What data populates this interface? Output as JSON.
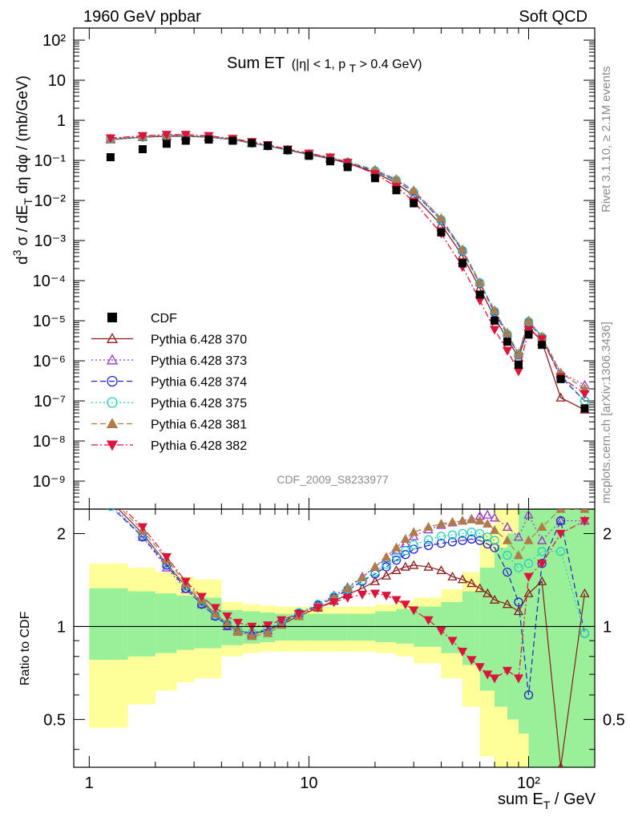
{
  "header": {
    "left": "1960 GeV ppbar",
    "right": "Soft QCD",
    "title_main": "Sum ET",
    "title_cut": "(|η| < 1, p",
    "title_cut_sub": "T",
    "title_cut_end": " > 0.4 GeV)"
  },
  "side_text": {
    "rivet": "Rivet 3.1.10, ≥ 2.1M events",
    "mcplots": "mcplots.cern.ch [arXiv:1306.3436]"
  },
  "watermark": "CDF_2009_S8233977",
  "axes": {
    "ylabel_top": "d³σ / dE_T dη dφ / (mb/GeV)",
    "ylabel_bottom": "Ratio to CDF",
    "xlabel": "sum E_T / GeV",
    "x_ticks": [
      "1",
      "10",
      "10²"
    ],
    "y_ticks_top": [
      "10²",
      "10",
      "1",
      "10⁻¹",
      "10⁻²",
      "10⁻³",
      "10⁻⁴",
      "10⁻⁵",
      "10⁻⁶",
      "10⁻⁷",
      "10⁻⁸",
      "10⁻⁹"
    ],
    "y_ticks_bottom": [
      "2",
      "1",
      "0.5"
    ]
  },
  "legend": [
    {
      "label": "CDF",
      "color": "#000000",
      "marker": "filled-square",
      "line": "none"
    },
    {
      "label": "Pythia 6.428 370",
      "color": "#8b1a1a",
      "marker": "open-triangle-up",
      "line": "solid"
    },
    {
      "label": "Pythia 6.428 373",
      "color": "#9932cc",
      "marker": "open-triangle-up",
      "line": "dotted"
    },
    {
      "label": "Pythia 6.428 374",
      "color": "#2020d0",
      "marker": "open-circle",
      "line": "dashed"
    },
    {
      "label": "Pythia 6.428 375",
      "color": "#20d0c0",
      "marker": "open-circle",
      "line": "dotted"
    },
    {
      "label": "Pythia 6.428 381",
      "color": "#b07a4a",
      "marker": "filled-triangle-up",
      "line": "dashed"
    },
    {
      "label": "Pythia 6.428 382",
      "color": "#dc143c",
      "marker": "filled-triangle-down",
      "line": "dashdot"
    }
  ],
  "chart_data": {
    "type": "scatter",
    "x_scale": "log",
    "xlim": [
      0.85,
      200
    ],
    "top_panel": {
      "y_scale": "log",
      "ylim": [
        2e-10,
        200
      ],
      "cdf": {
        "x": [
          1.25,
          1.75,
          2.25,
          2.75,
          3.5,
          4.5,
          5.5,
          6.5,
          8,
          10,
          12.5,
          15,
          20,
          25,
          30,
          40,
          50,
          60,
          70,
          80,
          90,
          100,
          115,
          140,
          180
        ],
        "y": [
          0.12,
          0.19,
          0.26,
          0.31,
          0.33,
          0.31,
          0.27,
          0.23,
          0.18,
          0.13,
          0.095,
          0.068,
          0.036,
          0.018,
          0.0085,
          0.0016,
          0.00027,
          4.5e-05,
          1e-05,
          3e-06,
          8e-07,
          4.5e-06,
          2.5e-06,
          3.5e-07,
          6.5e-08
        ]
      },
      "mc": {
        "x": [
          1.25,
          1.75,
          2.25,
          2.75,
          3.5,
          4.5,
          5.5,
          6.5,
          8,
          10,
          12.5,
          15,
          20,
          25,
          30,
          40,
          50,
          60,
          70,
          80,
          90,
          100,
          115,
          140,
          180
        ],
        "series": [
          {
            "name": "Pythia 6.428 370",
            "y": [
              0.33,
              0.38,
              0.4,
              0.4,
              0.38,
              0.33,
              0.27,
              0.23,
              0.18,
              0.14,
              0.11,
              0.085,
              0.05,
              0.027,
              0.013,
              0.0025,
              0.00042,
              6.5e-05,
              1.2e-05,
              3.5e-06,
              1.2e-06,
              7e-06,
              3e-06,
              1.2e-07,
              6e-08
            ]
          },
          {
            "name": "Pythia 6.428 373",
            "y": [
              0.34,
              0.38,
              0.41,
              0.41,
              0.38,
              0.33,
              0.27,
              0.23,
              0.18,
              0.14,
              0.115,
              0.09,
              0.056,
              0.033,
              0.017,
              0.0035,
              0.0006,
              9e-05,
              1.8e-05,
              5e-06,
              1.5e-06,
              1e-05,
              4e-06,
              5e-07,
              2.5e-07
            ]
          },
          {
            "name": "Pythia 6.428 374",
            "y": [
              0.34,
              0.38,
              0.41,
              0.41,
              0.38,
              0.33,
              0.27,
              0.23,
              0.18,
              0.14,
              0.115,
              0.088,
              0.054,
              0.031,
              0.016,
              0.0032,
              0.00055,
              8.5e-05,
              1.6e-05,
              4.5e-06,
              1.4e-06,
              9e-06,
              3.8e-06,
              4e-07,
              1e-07
            ]
          },
          {
            "name": "Pythia 6.428 375",
            "y": [
              0.34,
              0.38,
              0.41,
              0.41,
              0.38,
              0.33,
              0.27,
              0.23,
              0.18,
              0.14,
              0.115,
              0.089,
              0.055,
              0.032,
              0.016,
              0.0033,
              0.00057,
              8.8e-05,
              1.7e-05,
              4.6e-06,
              1.45e-06,
              9.5e-06,
              3.9e-06,
              4.5e-07,
              1e-07
            ]
          },
          {
            "name": "Pythia 6.428 381",
            "y": [
              0.35,
              0.39,
              0.42,
              0.42,
              0.39,
              0.34,
              0.28,
              0.235,
              0.185,
              0.145,
              0.118,
              0.092,
              0.058,
              0.034,
              0.018,
              0.0036,
              0.0006,
              9e-05,
              1.8e-05,
              5e-06,
              1.5e-06,
              1e-05,
              4e-06,
              5e-07,
              2e-07
            ]
          },
          {
            "name": "Pythia 6.428 382",
            "y": [
              0.36,
              0.41,
              0.44,
              0.44,
              0.41,
              0.35,
              0.29,
              0.245,
              0.19,
              0.15,
              0.12,
              0.088,
              0.046,
              0.022,
              0.0095,
              0.0015,
              0.00022,
              3.2e-05,
              6e-06,
              1.8e-06,
              5.5e-07,
              6e-06,
              3.5e-06,
              4e-07,
              1.5e-07
            ]
          }
        ]
      }
    },
    "ratio_panel": {
      "y_scale": "log",
      "ylim": [
        0.35,
        2.4
      ],
      "reference_line": 1,
      "band_x_edges": [
        1,
        1.5,
        2,
        2.5,
        3,
        4,
        5,
        6,
        7,
        8,
        10,
        12.5,
        15,
        20,
        25,
        30,
        40,
        50,
        60,
        70,
        80,
        90,
        100,
        200
      ],
      "band_inner": {
        "lo": [
          0.78,
          0.8,
          0.82,
          0.84,
          0.85,
          0.87,
          0.88,
          0.89,
          0.9,
          0.9,
          0.9,
          0.9,
          0.9,
          0.89,
          0.88,
          0.86,
          0.82,
          0.75,
          0.62,
          0.55,
          0.5,
          0.45,
          0.35
        ],
        "hi": [
          1.33,
          1.3,
          1.28,
          1.26,
          1.24,
          1.13,
          1.12,
          1.11,
          1.1,
          1.1,
          1.1,
          1.1,
          1.1,
          1.12,
          1.14,
          1.16,
          1.2,
          1.3,
          1.55,
          1.8,
          2.0,
          2.4,
          2.4
        ]
      },
      "band_outer": {
        "lo": [
          0.47,
          0.56,
          0.62,
          0.66,
          0.68,
          0.8,
          0.82,
          0.83,
          0.83,
          0.83,
          0.83,
          0.83,
          0.83,
          0.82,
          0.8,
          0.76,
          0.68,
          0.55,
          0.38,
          0.35,
          0.35,
          0.35,
          0.35
        ],
        "hi": [
          1.6,
          1.55,
          1.5,
          1.45,
          1.42,
          1.2,
          1.18,
          1.17,
          1.16,
          1.16,
          1.16,
          1.16,
          1.16,
          1.18,
          1.2,
          1.24,
          1.32,
          1.5,
          2.0,
          2.4,
          2.4,
          2.4,
          2.4
        ]
      },
      "x": [
        1.25,
        1.75,
        2.25,
        2.75,
        3.25,
        3.75,
        4.25,
        4.75,
        5.5,
        6.5,
        7.5,
        9,
        11,
        13,
        15,
        17.5,
        20,
        22.5,
        25,
        27.5,
        30,
        35,
        40,
        45,
        50,
        55,
        60,
        65,
        70,
        80,
        90,
        100,
        115,
        140,
        180
      ],
      "series": [
        {
          "name": "Pythia 6.428 370",
          "y": [
            2.55,
            2.0,
            1.6,
            1.35,
            1.2,
            1.1,
            1.02,
            0.97,
            0.95,
            0.97,
            1.02,
            1.08,
            1.15,
            1.21,
            1.27,
            1.33,
            1.4,
            1.46,
            1.52,
            1.56,
            1.58,
            1.56,
            1.52,
            1.45,
            1.42,
            1.38,
            1.33,
            1.28,
            1.22,
            1.18,
            1.12,
            1.28,
            1.4,
            0.35,
            1.28
          ]
        },
        {
          "name": "Pythia 6.428 373",
          "y": [
            2.5,
            1.95,
            1.55,
            1.32,
            1.18,
            1.08,
            1.0,
            0.96,
            0.94,
            0.97,
            1.03,
            1.1,
            1.18,
            1.26,
            1.34,
            1.45,
            1.56,
            1.66,
            1.76,
            1.86,
            1.96,
            2.06,
            2.13,
            2.17,
            2.2,
            2.23,
            2.28,
            2.3,
            2.25,
            2.1,
            1.95,
            2.3,
            1.9,
            2.2,
            2.2
          ]
        },
        {
          "name": "Pythia 6.428 374",
          "y": [
            2.45,
            1.95,
            1.58,
            1.33,
            1.18,
            1.08,
            1.01,
            0.97,
            0.95,
            0.98,
            1.03,
            1.1,
            1.17,
            1.24,
            1.31,
            1.4,
            1.48,
            1.56,
            1.64,
            1.71,
            1.78,
            1.83,
            1.86,
            1.88,
            1.9,
            1.92,
            1.9,
            1.85,
            1.8,
            1.5,
            1.2,
            0.6,
            1.6,
            2.2,
            0.95
          ]
        },
        {
          "name": "Pythia 6.428 375",
          "y": [
            2.45,
            1.98,
            1.6,
            1.35,
            1.2,
            1.09,
            1.02,
            0.97,
            0.95,
            0.98,
            1.04,
            1.11,
            1.18,
            1.25,
            1.32,
            1.41,
            1.5,
            1.59,
            1.68,
            1.76,
            1.84,
            1.91,
            1.96,
            1.98,
            2.0,
            2.02,
            2.0,
            1.95,
            1.9,
            1.7,
            1.55,
            1.6,
            1.75,
            1.75,
            0.95
          ]
        },
        {
          "name": "Pythia 6.428 381",
          "y": [
            2.6,
            2.05,
            1.65,
            1.38,
            1.22,
            1.1,
            1.02,
            0.96,
            0.93,
            0.95,
            1.01,
            1.08,
            1.16,
            1.24,
            1.33,
            1.44,
            1.56,
            1.68,
            1.8,
            1.92,
            2.02,
            2.1,
            2.15,
            2.18,
            2.2,
            2.22,
            2.2,
            2.15,
            2.05,
            1.9,
            1.7,
            1.9,
            2.1,
            2.4,
            2.4
          ]
        },
        {
          "name": "Pythia 6.428 382",
          "y": [
            2.7,
            2.1,
            1.68,
            1.4,
            1.25,
            1.15,
            1.08,
            1.03,
            1.0,
            1.01,
            1.05,
            1.1,
            1.15,
            1.2,
            1.24,
            1.27,
            1.28,
            1.26,
            1.22,
            1.18,
            1.13,
            1.05,
            0.97,
            0.9,
            0.83,
            0.78,
            0.74,
            0.7,
            0.68,
            0.72,
            0.68,
            1.45,
            1.6,
            2.0,
            2.2
          ]
        }
      ]
    }
  }
}
